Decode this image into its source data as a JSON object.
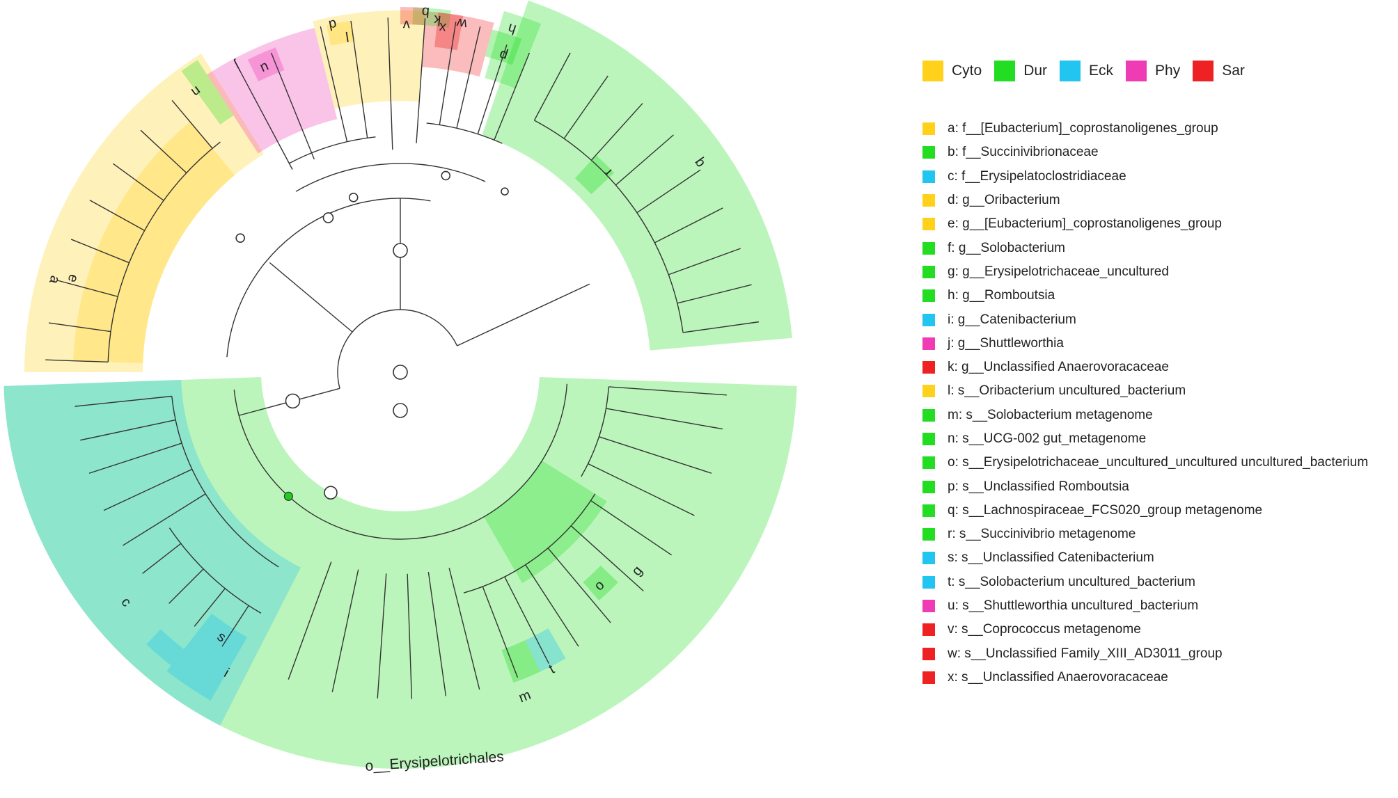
{
  "groups": [
    {
      "label": "Cyto",
      "color": "#FFD11A"
    },
    {
      "label": "Dur",
      "color": "#22DD22"
    },
    {
      "label": "Eck",
      "color": "#22C4F0"
    },
    {
      "label": "Phy",
      "color": "#F03CB4"
    },
    {
      "label": "Sar",
      "color": "#EE2222"
    }
  ],
  "taxa": [
    {
      "letter": "a",
      "text": "a: f__[Eubacterium]_coprostanoligenes_group",
      "group": "Cyto"
    },
    {
      "letter": "b",
      "text": "b: f__Succinivibrionaceae",
      "group": "Dur"
    },
    {
      "letter": "c",
      "text": "c: f__Erysipelatoclostridiaceae",
      "group": "Eck"
    },
    {
      "letter": "d",
      "text": "d: g__Oribacterium",
      "group": "Cyto"
    },
    {
      "letter": "e",
      "text": "e: g__[Eubacterium]_coprostanoligenes_group",
      "group": "Cyto"
    },
    {
      "letter": "f",
      "text": "f: g__Solobacterium",
      "group": "Dur"
    },
    {
      "letter": "g",
      "text": "g: g__Erysipelotrichaceae_uncultured",
      "group": "Dur"
    },
    {
      "letter": "h",
      "text": "h: g__Romboutsia",
      "group": "Dur"
    },
    {
      "letter": "i",
      "text": "i: g__Catenibacterium",
      "group": "Eck"
    },
    {
      "letter": "j",
      "text": "j: g__Shuttleworthia",
      "group": "Phy"
    },
    {
      "letter": "k",
      "text": "k: g__Unclassified Anaerovoracaceae",
      "group": "Sar"
    },
    {
      "letter": "l",
      "text": "l: s__Oribacterium uncultured_bacterium",
      "group": "Cyto"
    },
    {
      "letter": "m",
      "text": "m: s__Solobacterium metagenome",
      "group": "Dur"
    },
    {
      "letter": "n",
      "text": "n: s__UCG-002 gut_metagenome",
      "group": "Dur"
    },
    {
      "letter": "o",
      "text": "o: s__Erysipelotrichaceae_uncultured_uncultured uncultured_bacterium",
      "group": "Dur"
    },
    {
      "letter": "p",
      "text": "p: s__Unclassified  Romboutsia",
      "group": "Dur"
    },
    {
      "letter": "q",
      "text": "q: s__Lachnospiraceae_FCS020_group metagenome",
      "group": "Dur"
    },
    {
      "letter": "r",
      "text": "r: s__Succinivibrio metagenome",
      "group": "Dur"
    },
    {
      "letter": "s",
      "text": "s: s__Unclassified  Catenibacterium",
      "group": "Eck"
    },
    {
      "letter": "t",
      "text": "t: s__Solobacterium uncultured_bacterium",
      "group": "Eck"
    },
    {
      "letter": "u",
      "text": "u: s__Shuttleworthia uncultured_bacterium",
      "group": "Phy"
    },
    {
      "letter": "v",
      "text": "v: s__Coprococcus metagenome",
      "group": "Sar"
    },
    {
      "letter": "w",
      "text": "w: s__Unclassified  Family_XIII_AD3011_group",
      "group": "Sar"
    },
    {
      "letter": "x",
      "text": "x: s__Unclassified Anaerovoracaceae",
      "group": "Sar"
    }
  ],
  "cladogram": {
    "clade_label": "o__Erysipelotrichales",
    "shade_opacity": 0.3,
    "trunk_color": "#333333",
    "node_fill": "#ffffff",
    "significant_node_color": "#22CC22"
  }
}
